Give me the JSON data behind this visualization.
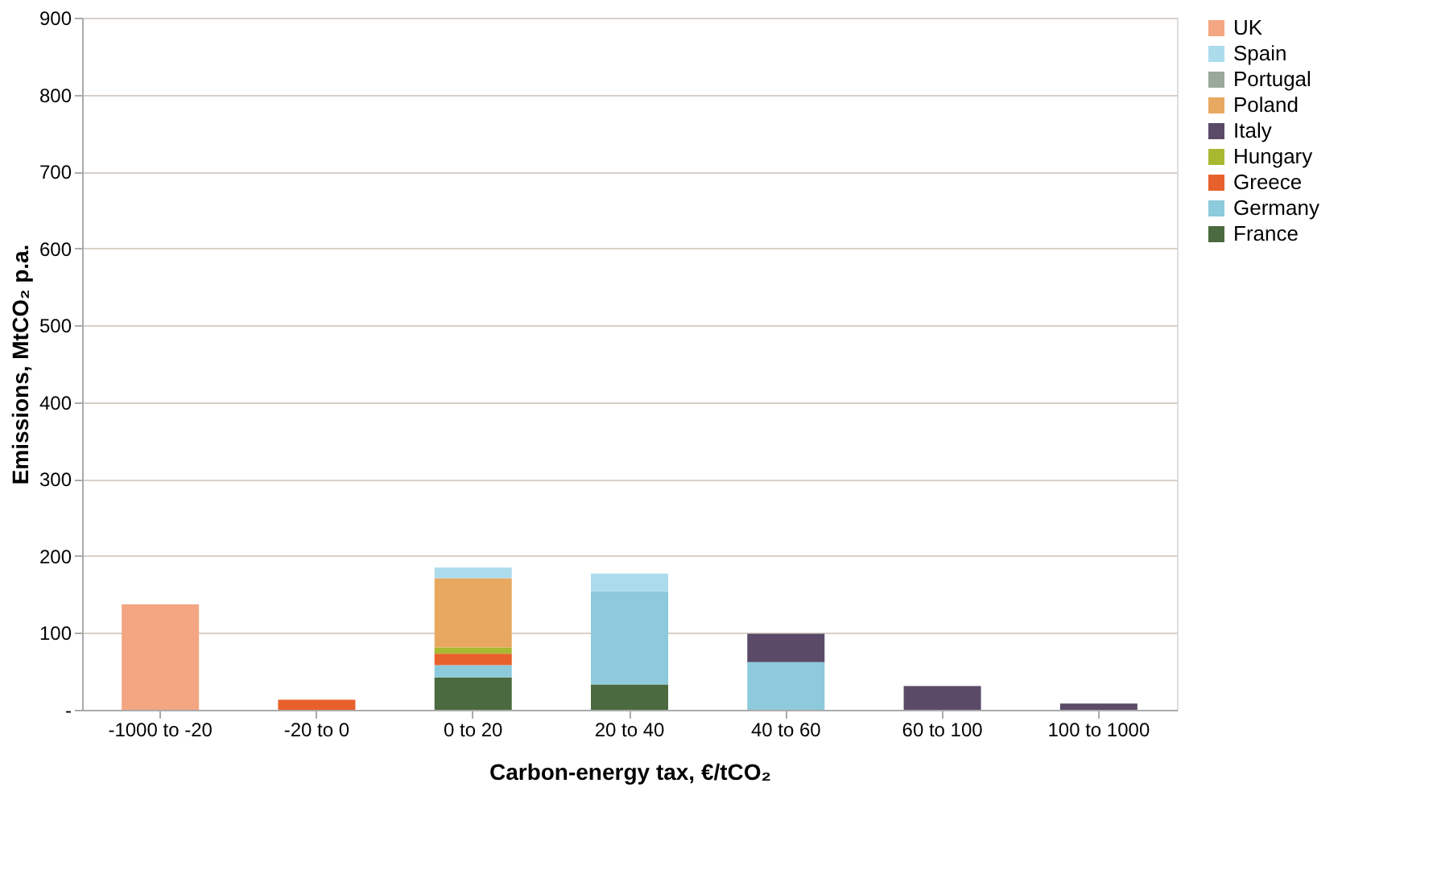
{
  "chart_data": {
    "type": "bar",
    "stacked": true,
    "xlabel": "Carbon-energy tax, €/tCO₂",
    "ylabel": "Emissions, MtCO₂ p.a.",
    "categories": [
      "-1000 to -20",
      "-20 to 0",
      "0 to 20",
      "20 to 40",
      "40 to 60",
      "60 to 100",
      "100 to 1000"
    ],
    "series": [
      {
        "name": "France",
        "color": "#4b6a3f",
        "values": [
          null,
          null,
          42,
          33,
          null,
          null,
          null
        ]
      },
      {
        "name": "Germany",
        "color": "#8ccadc",
        "values": [
          null,
          null,
          16,
          121,
          62,
          null,
          null
        ]
      },
      {
        "name": "Greece",
        "color": "#e8602c",
        "values": [
          null,
          13,
          15,
          null,
          null,
          null,
          null
        ]
      },
      {
        "name": "Hungary",
        "color": "#a8b830",
        "values": [
          null,
          null,
          8,
          null,
          null,
          null,
          null
        ]
      },
      {
        "name": "Italy",
        "color": "#5a4a68",
        "values": [
          null,
          null,
          null,
          null,
          37,
          31,
          8
        ]
      },
      {
        "name": "Poland",
        "color": "#e8a860",
        "values": [
          null,
          null,
          90,
          null,
          null,
          null,
          null
        ]
      },
      {
        "name": "Portugal",
        "color": "#9aa89a",
        "values": [
          null,
          null,
          null,
          null,
          null,
          null,
          null
        ]
      },
      {
        "name": "Spain",
        "color": "#acdcec",
        "values": [
          null,
          null,
          14,
          23,
          null,
          null,
          null
        ]
      },
      {
        "name": "UK",
        "color": "#f4a582",
        "values": [
          137,
          null,
          null,
          null,
          null,
          null,
          null
        ]
      }
    ],
    "ylim": [
      0,
      900
    ],
    "yticks": [
      {
        "value": 0,
        "label": "-"
      },
      100,
      200,
      300,
      400,
      500,
      600,
      700,
      800,
      900
    ],
    "grid": "y",
    "legend": "right"
  }
}
